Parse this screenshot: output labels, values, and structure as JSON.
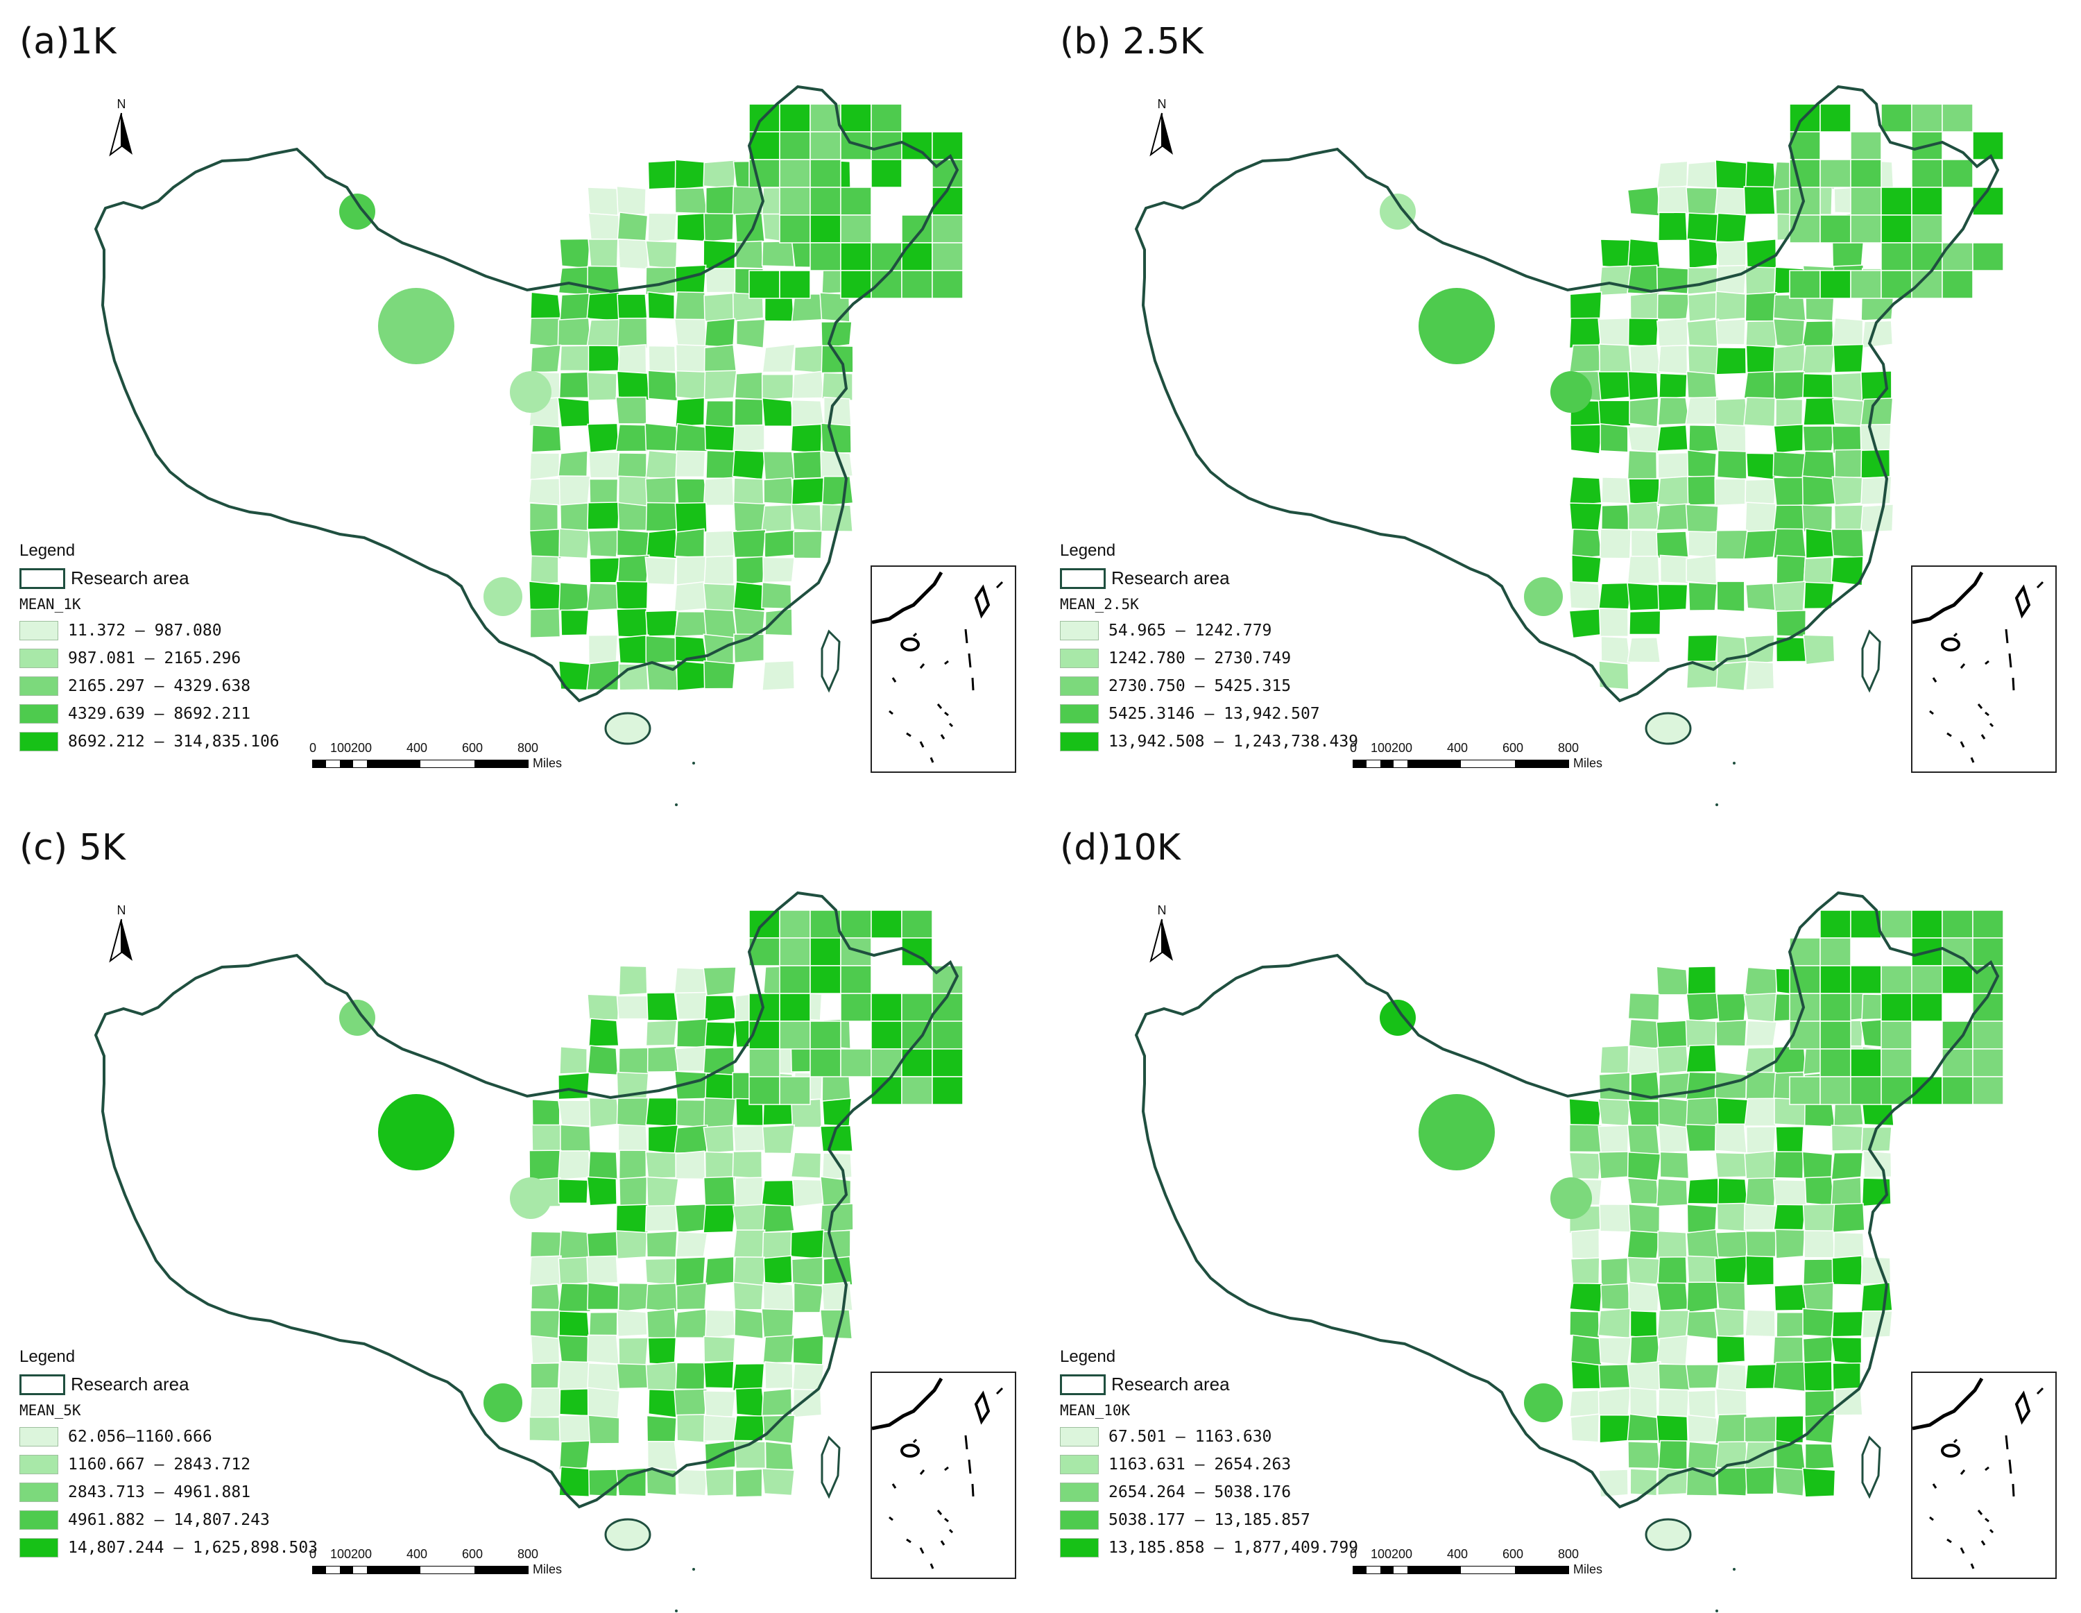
{
  "figure": {
    "panels": [
      {
        "id": "a",
        "title": "(a)1K",
        "legend_heading": "Legend",
        "research_area_label": "Research area",
        "field_name": "MEAN_1K",
        "classes": [
          {
            "label": "11.372 – 987.080",
            "color": "#dcf5dc"
          },
          {
            "label": "987.081 – 2165.296",
            "color": "#a8e8a8"
          },
          {
            "label": "2165.297 – 4329.638",
            "color": "#7cd97c"
          },
          {
            "label": "4329.639 – 8692.211",
            "color": "#4ecb4e"
          },
          {
            "label": "8692.212 – 314,835.106",
            "color": "#17c117"
          }
        ]
      },
      {
        "id": "b",
        "title": "(b) 2.5K",
        "legend_heading": "Legend",
        "research_area_label": "Research area",
        "field_name": "MEAN_2.5K",
        "classes": [
          {
            "label": "54.965 – 1242.779",
            "color": "#dcf5dc"
          },
          {
            "label": "1242.780 – 2730.749",
            "color": "#a8e8a8"
          },
          {
            "label": "2730.750 – 5425.315",
            "color": "#7cd97c"
          },
          {
            "label": "5425.3146 – 13,942.507",
            "color": "#4ecb4e"
          },
          {
            "label": "13,942.508 – 1,243,738.439",
            "color": "#17c117"
          }
        ]
      },
      {
        "id": "c",
        "title": "(c) 5K",
        "legend_heading": "Legend",
        "research_area_label": "Research area",
        "field_name": "MEAN_5K",
        "classes": [
          {
            "label": "62.056–1160.666",
            "color": "#dcf5dc"
          },
          {
            "label": "1160.667 – 2843.712",
            "color": "#a8e8a8"
          },
          {
            "label": "2843.713 – 4961.881",
            "color": "#7cd97c"
          },
          {
            "label": "4961.882 – 14,807.243",
            "color": "#4ecb4e"
          },
          {
            "label": "14,807.244 – 1,625,898.503",
            "color": "#17c117"
          }
        ]
      },
      {
        "id": "d",
        "title": "(d)10K",
        "legend_heading": "Legend",
        "research_area_label": "Research area",
        "field_name": "MEAN_10K",
        "classes": [
          {
            "label": "67.501 – 1163.630",
            "color": "#dcf5dc"
          },
          {
            "label": "1163.631 – 2654.263",
            "color": "#a8e8a8"
          },
          {
            "label": "2654.264 – 5038.176",
            "color": "#7cd97c"
          },
          {
            "label": "5038.177 – 13,185.857",
            "color": "#4ecb4e"
          },
          {
            "label": "13,185.858 – 1,877,409.799",
            "color": "#17c117"
          }
        ]
      }
    ],
    "north_arrow_label": "N",
    "scale": {
      "ticks": [
        "0",
        "100",
        "200",
        "400",
        "600",
        "800"
      ],
      "unit": "Miles"
    },
    "colors": {
      "boundary": "#1f4f3f",
      "internal_border": "#c8c8c8",
      "land_background": "#ffffff"
    }
  }
}
